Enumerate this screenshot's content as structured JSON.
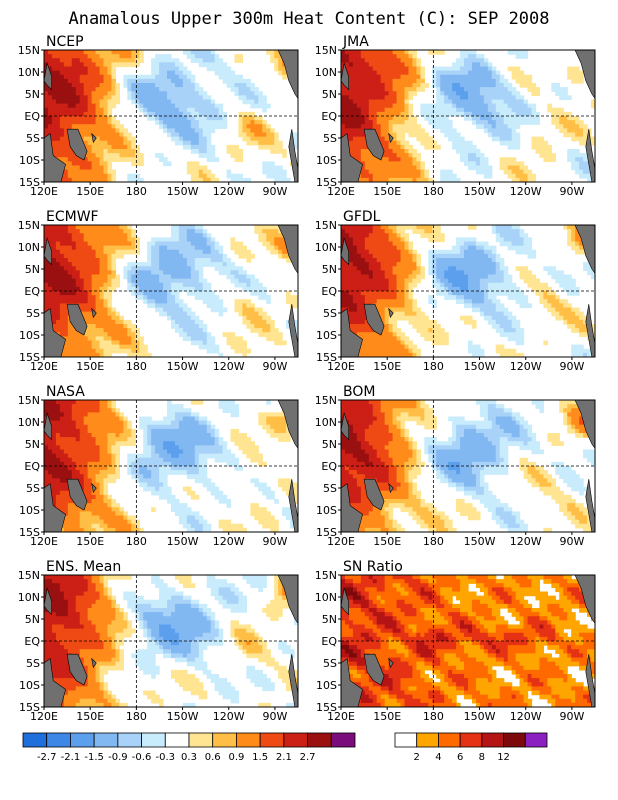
{
  "title": "Anamalous Upper 300m Heat Content (C): SEP 2008",
  "chart_data": {
    "type": "heatmap",
    "title": "Anamalous Upper 300m Heat Content (C): SEP 2008",
    "x_tick_labels": [
      "120E",
      "150E",
      "180",
      "150W",
      "120W",
      "90W"
    ],
    "y_tick_labels": [
      "15N",
      "10N",
      "5N",
      "EQ",
      "5S",
      "10S",
      "15S"
    ],
    "x_ticks_deg_east": [
      120,
      150,
      180,
      210,
      240,
      270
    ],
    "y_ticks_deg_north": [
      15,
      10,
      5,
      0,
      -5,
      -10,
      -15
    ],
    "xlim_deg_east": [
      120,
      285
    ],
    "ylim_deg_north": [
      -15,
      15
    ],
    "grid": "dashed lines at 180 and EQ",
    "panels": [
      {
        "title": "NCEP",
        "colorbar": "anomaly"
      },
      {
        "title": "JMA",
        "colorbar": "anomaly"
      },
      {
        "title": "ECMWF",
        "colorbar": "anomaly"
      },
      {
        "title": "GFDL",
        "colorbar": "anomaly"
      },
      {
        "title": "NASA",
        "colorbar": "anomaly"
      },
      {
        "title": "BOM",
        "colorbar": "anomaly"
      },
      {
        "title": "ENS. Mean",
        "colorbar": "anomaly"
      },
      {
        "title": "SN Ratio",
        "colorbar": "snr"
      }
    ],
    "colorbars": {
      "anomaly": {
        "labels": [
          "-2.7",
          "-2.1",
          "-1.5",
          "-0.9",
          "-0.6",
          "-0.3",
          "0.3",
          "0.6",
          "0.9",
          "1.5",
          "2.1",
          "2.7"
        ],
        "colors": [
          "#1e6edb",
          "#3d88e6",
          "#5ca0ed",
          "#82b8f2",
          "#a8d2f8",
          "#c8ecfc",
          "#ffffff",
          "#ffe591",
          "#ffbf46",
          "#ff8c1a",
          "#f04a14",
          "#cc1f16",
          "#9a1010",
          "#7b0c7b"
        ]
      },
      "snr": {
        "labels": [
          "2",
          "4",
          "6",
          "8",
          "12"
        ],
        "colors": [
          "#ffffff",
          "#ffa500",
          "#ff6a00",
          "#e63214",
          "#b41414",
          "#7d0a0a",
          "#8b1fbf"
        ]
      }
    },
    "land_color": "#707070"
  }
}
